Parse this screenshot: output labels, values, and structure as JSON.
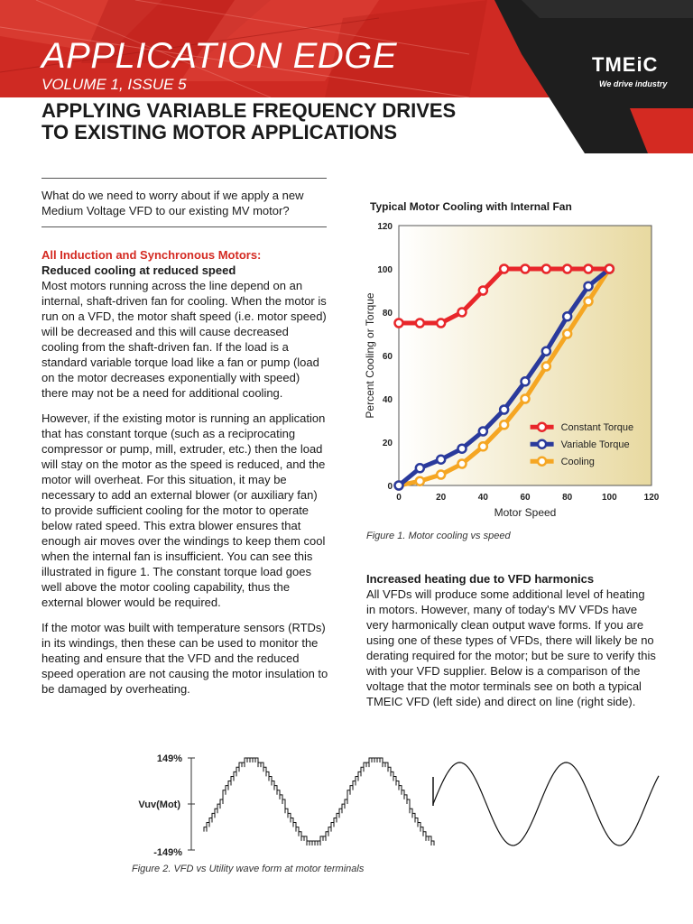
{
  "header": {
    "series_title": "APPLICATION EDGE",
    "issue": "VOLUME 1, ISSUE 5",
    "logo_text": "TMEiC",
    "tagline": "We drive industry"
  },
  "title_line1": "APPLYING VARIABLE FREQUENCY DRIVES",
  "title_line2": "TO EXISTING MOTOR APPLICATIONS",
  "left_column": {
    "intro": "What do we need to worry about if we apply a new Medium Voltage VFD to our existing MV motor?",
    "section_heading": "All Induction and Synchronous Motors:",
    "subheading": "Reduced cooling at reduced speed",
    "para1": "Most motors running across the line depend on an internal, shaft-driven fan for cooling. When the motor is run on a VFD, the motor shaft speed (i.e. motor speed) will be decreased and this will cause decreased cooling from the shaft-driven fan. If the load is a standard variable torque load like a fan or pump (load on the motor decreases exponentially with speed) there may not be a need for additional cooling.",
    "para2": "However, if the existing motor is running an application that has constant torque (such as a reciprocating compressor or pump, mill, extruder, etc.) then the load will stay on the motor as the speed is reduced, and the motor will overheat. For this situation, it may be necessary to add an external blower (or auxiliary fan) to provide sufficient cooling for the motor to operate below rated speed. This extra blower ensures that enough air moves over the windings to keep them cool when the internal fan is insufficient. You can see this illustrated in figure 1. The constant torque load goes well above the motor cooling capability, thus the external blower would be required.",
    "para3": "If the motor was built with temperature sensors (RTDs) in its windings, then these can be used to monitor the heating and ensure that the VFD and the reduced speed operation are not causing the motor insulation to be damaged by overheating."
  },
  "right_column": {
    "heading": "Increased heating due to VFD harmonics",
    "para": "All VFDs will produce some additional level of heating in motors. However, many of today's MV VFDs have very harmonically clean output wave forms. If you are using one of these types of VFDs, there will likely be no derating required for the motor; but be sure to verify this with your VFD supplier. Below is a comparison of the voltage that the motor terminals see on both a typical TMEIC VFD (left side) and direct on line (right side)."
  },
  "figure1_caption": "Figure 1. Motor cooling vs speed",
  "figure2_caption": "Figure 2. VFD vs Utility wave form at motor terminals",
  "chart_data": {
    "type": "line",
    "title": "Typical Motor Cooling with Internal Fan",
    "xlabel": "Motor Speed",
    "ylabel": "Percent Cooling or Torque",
    "xlim": [
      0,
      120
    ],
    "ylim": [
      0,
      120
    ],
    "xticks": [
      0,
      20,
      40,
      60,
      80,
      100,
      120
    ],
    "yticks": [
      0,
      20,
      40,
      60,
      80,
      100,
      120
    ],
    "legend_position": "bottom-right",
    "series": [
      {
        "name": "Constant Torque",
        "color": "#e8262a",
        "x": [
          0,
          10,
          20,
          30,
          40,
          50,
          60,
          70,
          80,
          90,
          100
        ],
        "y": [
          75,
          75,
          75,
          80,
          90,
          100,
          100,
          100,
          100,
          100,
          100
        ]
      },
      {
        "name": "Variable Torque",
        "color": "#2a3a9c",
        "x": [
          0,
          10,
          20,
          30,
          40,
          50,
          60,
          70,
          80,
          90,
          100
        ],
        "y": [
          0,
          8,
          12,
          17,
          25,
          35,
          48,
          62,
          78,
          92,
          100
        ]
      },
      {
        "name": "Cooling",
        "color": "#f5a623",
        "x": [
          0,
          10,
          20,
          30,
          40,
          50,
          60,
          70,
          80,
          90,
          100
        ],
        "y": [
          0,
          2,
          5,
          10,
          18,
          28,
          40,
          55,
          70,
          85,
          100
        ]
      }
    ]
  },
  "waveform": {
    "top_label": "149%",
    "mid_label": "Vuv(Mot)",
    "bottom_label": "-149%"
  }
}
